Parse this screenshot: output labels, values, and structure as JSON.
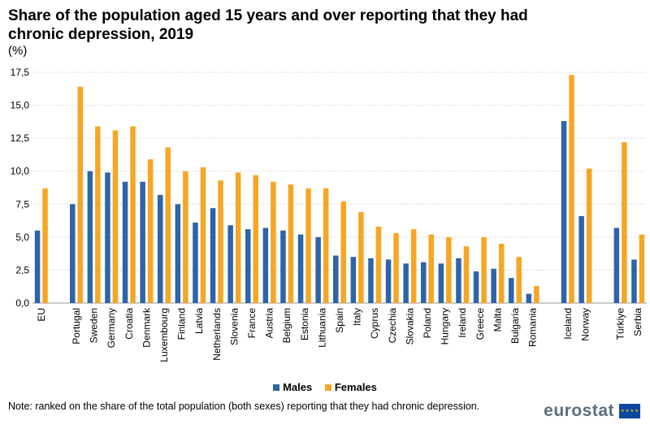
{
  "title": "Share of the population aged 15 years and over reporting that they had chronic depression, 2019",
  "unit": "(%)",
  "note": "Note: ranked on the share of the total population (both sexes) reporting that they had chronic depression.",
  "logo_text": "eurostat",
  "colors": {
    "males": "#2e64a8",
    "females": "#f6a623",
    "grid": "#d9d9d9"
  },
  "chart_data": {
    "type": "bar",
    "title": "Share of the population aged 15 years and over reporting that they had chronic depression, 2019",
    "ylabel": "(%)",
    "ylim": [
      0,
      17.5
    ],
    "yticks": [
      "0,0",
      "2,5",
      "5,0",
      "7,5",
      "10,0",
      "12,5",
      "15,0",
      "17,5"
    ],
    "categories": [
      "EU",
      "",
      "Portugal",
      "Sweden",
      "Germany",
      "Croatia",
      "Denmark",
      "Luxembourg",
      "Finland",
      "Latvia",
      "Netherlands",
      "Slovenia",
      "France",
      "Austria",
      "Belgium",
      "Estonia",
      "Lithuania",
      "Spain",
      "Italy",
      "Cyprus",
      "Czechia",
      "Slovakia",
      "Poland",
      "Hungary",
      "Ireland",
      "Greece",
      "Malta",
      "Bulgaria",
      "Romania",
      "",
      "Iceland",
      "Norway",
      "",
      "Türkiye",
      "Serbia"
    ],
    "series": [
      {
        "name": "Males",
        "values": [
          5.5,
          null,
          7.5,
          10.0,
          9.9,
          9.2,
          9.2,
          8.2,
          7.5,
          6.1,
          7.2,
          5.9,
          5.6,
          5.7,
          5.5,
          5.2,
          5.0,
          3.6,
          3.5,
          3.4,
          3.3,
          3.0,
          3.1,
          3.0,
          3.4,
          2.4,
          2.6,
          1.9,
          0.7,
          null,
          13.8,
          6.6,
          null,
          5.7,
          3.3
        ]
      },
      {
        "name": "Females",
        "values": [
          8.7,
          null,
          16.4,
          13.4,
          13.1,
          13.4,
          10.9,
          11.8,
          10.0,
          10.3,
          9.3,
          9.9,
          9.7,
          9.2,
          9.0,
          8.7,
          8.7,
          7.7,
          6.9,
          5.8,
          5.3,
          5.6,
          5.2,
          5.0,
          4.3,
          5.0,
          4.5,
          3.5,
          1.3,
          null,
          17.3,
          10.2,
          null,
          12.2,
          5.2
        ]
      }
    ],
    "legend": [
      "Males",
      "Females"
    ],
    "legend_position": "bottom"
  }
}
